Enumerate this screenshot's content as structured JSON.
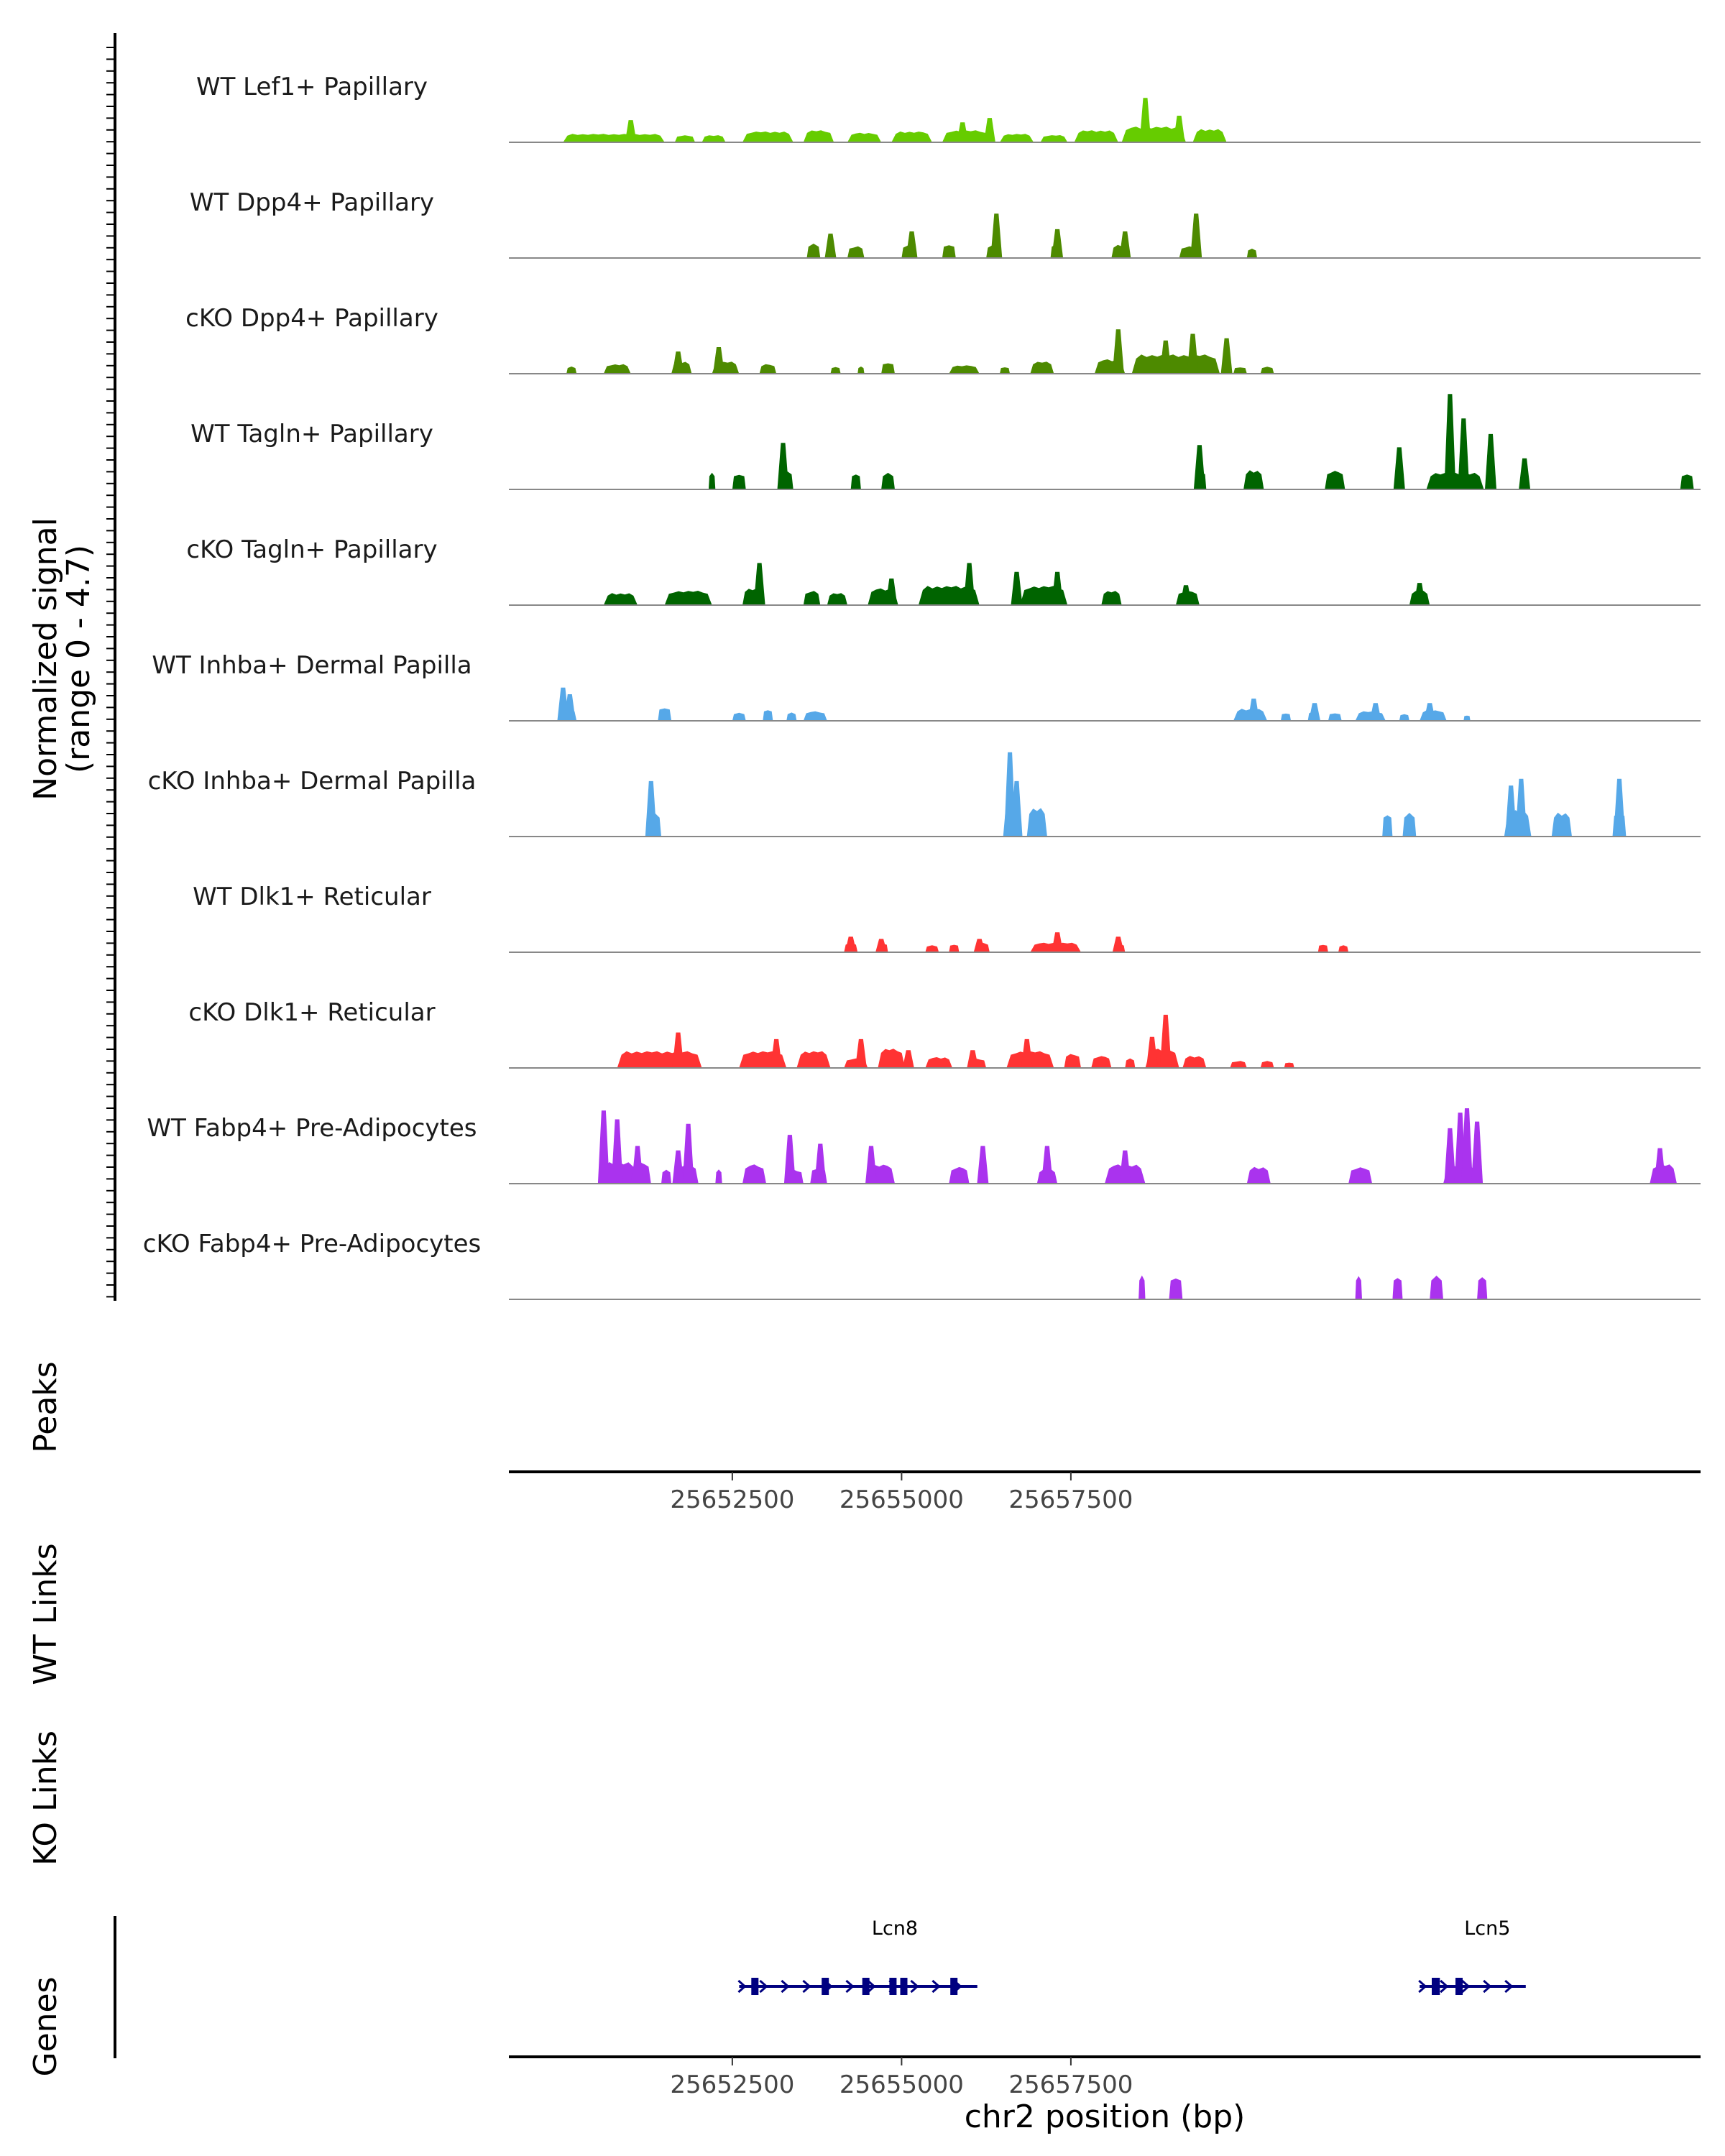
{
  "chart_data": {
    "type": "area",
    "title": "",
    "xlabel": "chr2 position (bp)",
    "ylabel": "Normalized signal",
    "ylabel_range": "(range 0 - 4.7)",
    "ylim": [
      0,
      4.7
    ],
    "xlim": [
      25649200,
      25666800
    ],
    "xticks": [
      25652500,
      25655000,
      25657500
    ],
    "xtick_labels": [
      "25652500",
      "25655000",
      "25657500"
    ],
    "panel_labels": {
      "peaks": "Peaks",
      "wt_links": "WT Links",
      "ko_links": "KO Links",
      "genes": "Genes"
    },
    "tracks": [
      {
        "name": "WT Lef1+ Papillary",
        "color": "#66cc00",
        "segments": [
          [
            25650000,
            25651500,
            0.35
          ],
          [
            25651650,
            25651950,
            0.3
          ],
          [
            25652050,
            25652400,
            0.3
          ],
          [
            25652650,
            25653400,
            0.45
          ],
          [
            25653550,
            25654000,
            0.5
          ],
          [
            25654200,
            25654700,
            0.4
          ],
          [
            25654850,
            25655450,
            0.45
          ],
          [
            25655600,
            25656300,
            0.5
          ],
          [
            25656450,
            25656950,
            0.35
          ],
          [
            25657050,
            25657450,
            0.3
          ],
          [
            25657550,
            25658200,
            0.5
          ],
          [
            25658250,
            25659200,
            0.65
          ],
          [
            25659300,
            25659800,
            0.55
          ]
        ],
        "peaks": [
          [
            25651000,
            1.0
          ],
          [
            25655900,
            0.9
          ],
          [
            25656300,
            1.1
          ],
          [
            25658600,
            2.0
          ],
          [
            25659100,
            1.2
          ]
        ]
      },
      {
        "name": "WT Dpp4+ Papillary",
        "color": "#4d8a00",
        "segments": [
          [
            25653600,
            25653800,
            0.6
          ],
          [
            25654200,
            25654450,
            0.5
          ],
          [
            25655000,
            25655200,
            0.55
          ],
          [
            25655600,
            25655800,
            0.6
          ],
          [
            25656250,
            25656450,
            0.55
          ],
          [
            25657200,
            25657350,
            0.6
          ],
          [
            25658100,
            25658350,
            0.55
          ],
          [
            25659100,
            25659400,
            0.5
          ],
          [
            25660100,
            25660250,
            0.4
          ]
        ],
        "peaks": [
          [
            25653950,
            1.1
          ],
          [
            25655150,
            1.2
          ],
          [
            25656400,
            2.0
          ],
          [
            25657300,
            1.3
          ],
          [
            25658300,
            1.2
          ],
          [
            25659350,
            2.0
          ]
        ]
      },
      {
        "name": "cKO Dpp4+ Papillary",
        "color": "#4d8a00",
        "segments": [
          [
            25650050,
            25650200,
            0.3
          ],
          [
            25650600,
            25651000,
            0.4
          ],
          [
            25651600,
            25651900,
            0.5
          ],
          [
            25652200,
            25652600,
            0.5
          ],
          [
            25652900,
            25653150,
            0.4
          ],
          [
            25653950,
            25654100,
            0.3
          ],
          [
            25654350,
            25654450,
            0.3
          ],
          [
            25654700,
            25654900,
            0.5
          ],
          [
            25655700,
            25656150,
            0.35
          ],
          [
            25656450,
            25656600,
            0.3
          ],
          [
            25656900,
            25657250,
            0.5
          ],
          [
            25657850,
            25658300,
            0.6
          ],
          [
            25658400,
            25659700,
            0.8
          ],
          [
            25659900,
            25660100,
            0.3
          ],
          [
            25660300,
            25660500,
            0.3
          ]
        ],
        "peaks": [
          [
            25651700,
            1.0
          ],
          [
            25652300,
            1.2
          ],
          [
            25658200,
            2.0
          ],
          [
            25658900,
            1.5
          ],
          [
            25659300,
            1.8
          ],
          [
            25659800,
            1.6
          ]
        ]
      },
      {
        "name": "WT Tagln+ Papillary",
        "color": "#006400",
        "segments": [
          [
            25652150,
            25652250,
            0.7
          ],
          [
            25652500,
            25652700,
            0.7
          ],
          [
            25653200,
            25653400,
            0.8
          ],
          [
            25654250,
            25654400,
            0.7
          ],
          [
            25654700,
            25654900,
            0.7
          ],
          [
            25659350,
            25659500,
            0.8
          ],
          [
            25660050,
            25660350,
            0.8
          ],
          [
            25661250,
            25661550,
            0.8
          ],
          [
            25662750,
            25663600,
            0.7
          ],
          [
            25666500,
            25666700,
            0.7
          ]
        ],
        "peaks": [
          [
            25653250,
            2.1
          ],
          [
            25659400,
            2.0
          ],
          [
            25662350,
            1.9
          ],
          [
            25663100,
            4.3
          ],
          [
            25663300,
            3.2
          ],
          [
            25663700,
            2.5
          ],
          [
            25664200,
            1.4
          ]
        ]
      },
      {
        "name": "cKO Tagln+ Papillary",
        "color": "#006400",
        "segments": [
          [
            25650600,
            25651100,
            0.5
          ],
          [
            25651500,
            25652200,
            0.6
          ],
          [
            25652650,
            25652950,
            0.7
          ],
          [
            25653550,
            25653800,
            0.6
          ],
          [
            25653900,
            25654200,
            0.5
          ],
          [
            25654500,
            25654950,
            0.7
          ],
          [
            25655250,
            25656150,
            0.8
          ],
          [
            25656750,
            25657450,
            0.8
          ],
          [
            25657950,
            25658250,
            0.6
          ],
          [
            25659050,
            25659400,
            0.6
          ],
          [
            25662500,
            25662800,
            0.6
          ]
        ],
        "peaks": [
          [
            25652900,
            1.9
          ],
          [
            25654850,
            1.2
          ],
          [
            25656000,
            1.9
          ],
          [
            25656700,
            1.5
          ],
          [
            25657300,
            1.5
          ],
          [
            25659200,
            0.9
          ],
          [
            25662650,
            1.0
          ]
        ]
      },
      {
        "name": "WT Inhba+ Dermal Papilla",
        "color": "#56a8e8",
        "segments": [
          [
            25649950,
            25650200,
            0.5
          ],
          [
            25651400,
            25651600,
            0.6
          ],
          [
            25652500,
            25652700,
            0.35
          ],
          [
            25652950,
            25653100,
            0.5
          ],
          [
            25653300,
            25653450,
            0.35
          ],
          [
            25653550,
            25653900,
            0.4
          ],
          [
            25659900,
            25660400,
            0.5
          ],
          [
            25660600,
            25660750,
            0.35
          ],
          [
            25661000,
            25661150,
            0.4
          ],
          [
            25661300,
            25661500,
            0.35
          ],
          [
            25661700,
            25662150,
            0.4
          ],
          [
            25662350,
            25662500,
            0.3
          ],
          [
            25662650,
            25663050,
            0.45
          ],
          [
            25663300,
            25663400,
            0.25
          ]
        ],
        "peaks": [
          [
            25650000,
            1.5
          ],
          [
            25650100,
            1.2
          ],
          [
            25660200,
            1.0
          ],
          [
            25661100,
            0.8
          ],
          [
            25662000,
            0.8
          ],
          [
            25662800,
            0.8
          ]
        ]
      },
      {
        "name": "cKO Inhba+ Dermal Papilla",
        "color": "#56a8e8",
        "segments": [
          [
            25651250,
            25651450,
            1.0
          ],
          [
            25656500,
            25656750,
            1.2
          ],
          [
            25656850,
            25657150,
            1.2
          ],
          [
            25662100,
            25662250,
            1.0
          ],
          [
            25662400,
            25662600,
            1.0
          ],
          [
            25663900,
            25664300,
            1.1
          ],
          [
            25664600,
            25664900,
            1.0
          ],
          [
            25665500,
            25665700,
            1.1
          ]
        ],
        "peaks": [
          [
            25651300,
            2.5
          ],
          [
            25656600,
            3.8
          ],
          [
            25656700,
            2.5
          ],
          [
            25664000,
            2.3
          ],
          [
            25664150,
            2.6
          ],
          [
            25665600,
            2.6
          ]
        ]
      },
      {
        "name": "WT Dlk1+ Reticular",
        "color": "#ff3333",
        "segments": [
          [
            25654150,
            25654350,
            0.4
          ],
          [
            25654650,
            25654800,
            0.4
          ],
          [
            25655350,
            25655550,
            0.3
          ],
          [
            25655700,
            25655850,
            0.35
          ],
          [
            25656100,
            25656300,
            0.4
          ],
          [
            25656900,
            25657650,
            0.4
          ],
          [
            25658150,
            25658300,
            0.35
          ],
          [
            25661150,
            25661300,
            0.35
          ],
          [
            25661450,
            25661600,
            0.3
          ]
        ],
        "peaks": [
          [
            25654250,
            0.7
          ],
          [
            25654700,
            0.6
          ],
          [
            25656150,
            0.6
          ],
          [
            25657300,
            0.9
          ],
          [
            25658200,
            0.7
          ]
        ]
      },
      {
        "name": "cKO Dlk1+ Reticular",
        "color": "#ff3333",
        "segments": [
          [
            25650800,
            25652050,
            0.7
          ],
          [
            25652600,
            25653300,
            0.7
          ],
          [
            25653450,
            25653950,
            0.7
          ],
          [
            25654150,
            25654500,
            0.4
          ],
          [
            25654650,
            25655050,
            0.8
          ],
          [
            25655350,
            25655750,
            0.45
          ],
          [
            25656000,
            25656250,
            0.4
          ],
          [
            25656550,
            25657250,
            0.7
          ],
          [
            25657400,
            25657650,
            0.6
          ],
          [
            25657800,
            25658100,
            0.5
          ],
          [
            25658300,
            25658450,
            0.4
          ],
          [
            25658600,
            25659100,
            0.8
          ],
          [
            25659150,
            25659500,
            0.5
          ],
          [
            25659850,
            25660100,
            0.3
          ],
          [
            25660300,
            25660500,
            0.3
          ],
          [
            25660650,
            25660800,
            0.25
          ]
        ],
        "peaks": [
          [
            25651700,
            1.6
          ],
          [
            25653150,
            1.3
          ],
          [
            25654400,
            1.3
          ],
          [
            25655100,
            0.8
          ],
          [
            25656050,
            0.8
          ],
          [
            25656850,
            1.3
          ],
          [
            25658900,
            2.4
          ],
          [
            25658700,
            1.4
          ]
        ]
      },
      {
        "name": "WT Fabp4+ Pre-Adipocytes",
        "color": "#aa33ee",
        "segments": [
          [
            25650550,
            25651100,
            0.9
          ],
          [
            25651000,
            25651300,
            0.9
          ],
          [
            25651450,
            25651600,
            0.6
          ],
          [
            25651650,
            25652000,
            0.8
          ],
          [
            25652250,
            25652350,
            0.6
          ],
          [
            25652650,
            25653000,
            0.8
          ],
          [
            25653300,
            25653550,
            0.6
          ],
          [
            25653650,
            25653900,
            0.7
          ],
          [
            25654500,
            25654900,
            0.8
          ],
          [
            25655700,
            25656000,
            0.7
          ],
          [
            25657000,
            25657300,
            0.6
          ],
          [
            25658000,
            25658600,
            0.8
          ],
          [
            25660100,
            25660450,
            0.7
          ],
          [
            25661600,
            25661950,
            0.7
          ],
          [
            25663000,
            25663500,
            0.8
          ],
          [
            25666050,
            25666450,
            0.8
          ]
        ],
        "peaks": [
          [
            25650600,
            3.3
          ],
          [
            25650800,
            2.9
          ],
          [
            25651100,
            1.7
          ],
          [
            25651700,
            1.5
          ],
          [
            25651850,
            2.7
          ],
          [
            25653350,
            2.2
          ],
          [
            25653800,
            1.8
          ],
          [
            25654550,
            1.7
          ],
          [
            25656200,
            1.7
          ],
          [
            25657150,
            1.7
          ],
          [
            25658300,
            1.5
          ],
          [
            25663100,
            2.5
          ],
          [
            25663250,
            3.2
          ],
          [
            25663350,
            3.4
          ],
          [
            25663500,
            2.8
          ],
          [
            25666200,
            1.6
          ]
        ]
      },
      {
        "name": "cKO Fabp4+ Pre-Adipocytes",
        "color": "#aa33ee",
        "segments": [
          [
            25658500,
            25658600,
            1.0
          ],
          [
            25658950,
            25659150,
            1.0
          ],
          [
            25661700,
            25661800,
            1.0
          ],
          [
            25662250,
            25662400,
            1.0
          ],
          [
            25662800,
            25663000,
            1.0
          ],
          [
            25663500,
            25663650,
            1.0
          ]
        ],
        "peaks": []
      }
    ],
    "genes": [
      {
        "name": "Lcn8",
        "start": 25652750,
        "end": 25655800,
        "strand": "+",
        "exons": [
          [
            25652780,
            25652880
          ],
          [
            25653820,
            25653920
          ],
          [
            25654420,
            25654470
          ],
          [
            25654820,
            25654900
          ],
          [
            25654980,
            25655060
          ],
          [
            25655720,
            25655800
          ]
        ]
      },
      {
        "name": "Lcn5",
        "start": 25662800,
        "end": 25663900,
        "strand": "+",
        "exons": [
          [
            25662830,
            25662950
          ],
          [
            25663180,
            25663280
          ]
        ]
      }
    ]
  }
}
